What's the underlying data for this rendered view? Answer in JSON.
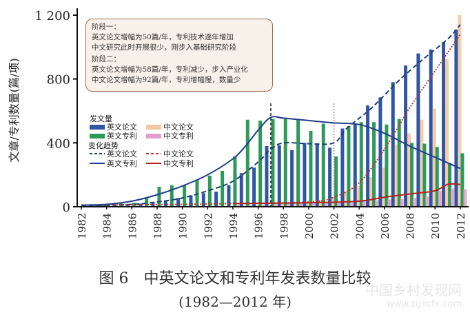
{
  "chart_data": {
    "type": "bar",
    "title": "图 6　中英文论文和专利年发表数量比较",
    "subtitle": "(1982—2012 年)",
    "xlabel": "",
    "ylabel": "文章/专利数量(篇/项)",
    "ylim": [
      0,
      1200
    ],
    "yticks": [
      "0",
      "400",
      "800",
      "1 200"
    ],
    "xticks": [
      "1982",
      "1984",
      "1986",
      "1988",
      "1990",
      "1992",
      "1994",
      "1996",
      "1998",
      "2000",
      "2002",
      "2004",
      "2006",
      "2008",
      "2010",
      "2012"
    ],
    "x": [
      1982,
      1983,
      1984,
      1985,
      1986,
      1987,
      1988,
      1989,
      1990,
      1991,
      1992,
      1993,
      1994,
      1995,
      1996,
      1997,
      1998,
      1999,
      2000,
      2001,
      2002,
      2003,
      2004,
      2005,
      2006,
      2007,
      2008,
      2009,
      2010,
      2011,
      2012
    ],
    "legend_bars_title": "发文量",
    "legend_lines_title": "变化趋势",
    "series": [
      {
        "name": "英文论文",
        "kind": "bar",
        "color": "#2f55a4",
        "values": [
          5,
          5,
          8,
          10,
          15,
          20,
          30,
          40,
          55,
          70,
          85,
          95,
          135,
          210,
          245,
          380,
          385,
          355,
          400,
          395,
          370,
          490,
          515,
          635,
          685,
          780,
          885,
          960,
          985,
          1030,
          1110
        ]
      },
      {
        "name": "中文论文",
        "kind": "bar",
        "color": "#f2c9a0",
        "values": [
          0,
          0,
          0,
          0,
          0,
          0,
          0,
          0,
          0,
          0,
          0,
          0,
          5,
          8,
          10,
          12,
          20,
          25,
          30,
          40,
          60,
          95,
          130,
          185,
          245,
          390,
          460,
          545,
          615,
          925,
          1200
        ]
      },
      {
        "name": "英文专利",
        "kind": "bar",
        "color": "#2e9a5a",
        "values": [
          10,
          10,
          15,
          20,
          25,
          55,
          125,
          135,
          135,
          165,
          195,
          225,
          315,
          545,
          540,
          550,
          550,
          550,
          475,
          520,
          315,
          505,
          530,
          530,
          515,
          550,
          400,
          395,
          375,
          275,
          335
        ]
      },
      {
        "name": "中文专利",
        "kind": "bar",
        "color": "#e2a0c8",
        "values": [
          0,
          0,
          0,
          0,
          0,
          0,
          0,
          0,
          0,
          0,
          0,
          0,
          10,
          12,
          14,
          15,
          18,
          20,
          22,
          25,
          28,
          30,
          35,
          40,
          45,
          50,
          55,
          65,
          100,
          115,
          110
        ]
      }
    ],
    "trends": [
      {
        "name": "英文论文",
        "style": "dashed",
        "color": "#1f3d7a",
        "x": [
          1982,
          1986,
          1988,
          1990,
          1992,
          1994,
          1996,
          1997,
          1998,
          2000,
          2002,
          2003,
          2005,
          2007,
          2009,
          2011,
          2012
        ],
        "values": [
          5,
          15,
          30,
          55,
          100,
          160,
          280,
          360,
          400,
          395,
          400,
          490,
          620,
          780,
          920,
          1050,
          1140
        ]
      },
      {
        "name": "中文论文",
        "style": "dotted",
        "color": "#c0392b",
        "x": [
          1982,
          1990,
          1994,
          2000,
          2002,
          2004,
          2006,
          2008,
          2010,
          2012
        ],
        "values": [
          10,
          15,
          20,
          30,
          60,
          150,
          360,
          620,
          850,
          1080
        ]
      },
      {
        "name": "英文专利",
        "style": "solid",
        "color": "#1f3d8a",
        "x": [
          1982,
          1984,
          1986,
          1988,
          1990,
          1992,
          1994,
          1995,
          1996,
          1997,
          1998,
          2000,
          2002,
          2004,
          2006,
          2008,
          2010,
          2012
        ],
        "values": [
          10,
          15,
          35,
          75,
          130,
          200,
          300,
          380,
          480,
          560,
          555,
          540,
          525,
          515,
          460,
          380,
          310,
          240
        ]
      },
      {
        "name": "中文专利",
        "style": "solid",
        "color": "#b22222",
        "x": [
          1994,
          2000,
          2004,
          2006,
          2008,
          2010,
          2011,
          2012
        ],
        "values": [
          20,
          25,
          35,
          60,
          80,
          100,
          140,
          140
        ]
      }
    ],
    "markers": [
      {
        "x": 1997,
        "style": "dashed",
        "color": "#222"
      },
      {
        "x": 2002,
        "style": "dotted",
        "color": "#999"
      }
    ],
    "grid": false,
    "legend_position": "top-left"
  },
  "annotation": {
    "phase1_title": "阶段一：",
    "phase1_line1": "英文论文增幅为50篇/年，专利技术逐年增加",
    "phase1_line2": "中文研究此时开展很少，刚步入基础研究阶段",
    "phase2_title": "阶段二：",
    "phase2_line1": "英文论文增幅为58篇/年，专利减少，步入产业化",
    "phase2_line2": "中文论文增幅为92篇/年，专利增幅慢，数量少"
  },
  "watermark": {
    "name": "中国乡村发现网",
    "url": "www.zgxcfx.com"
  }
}
